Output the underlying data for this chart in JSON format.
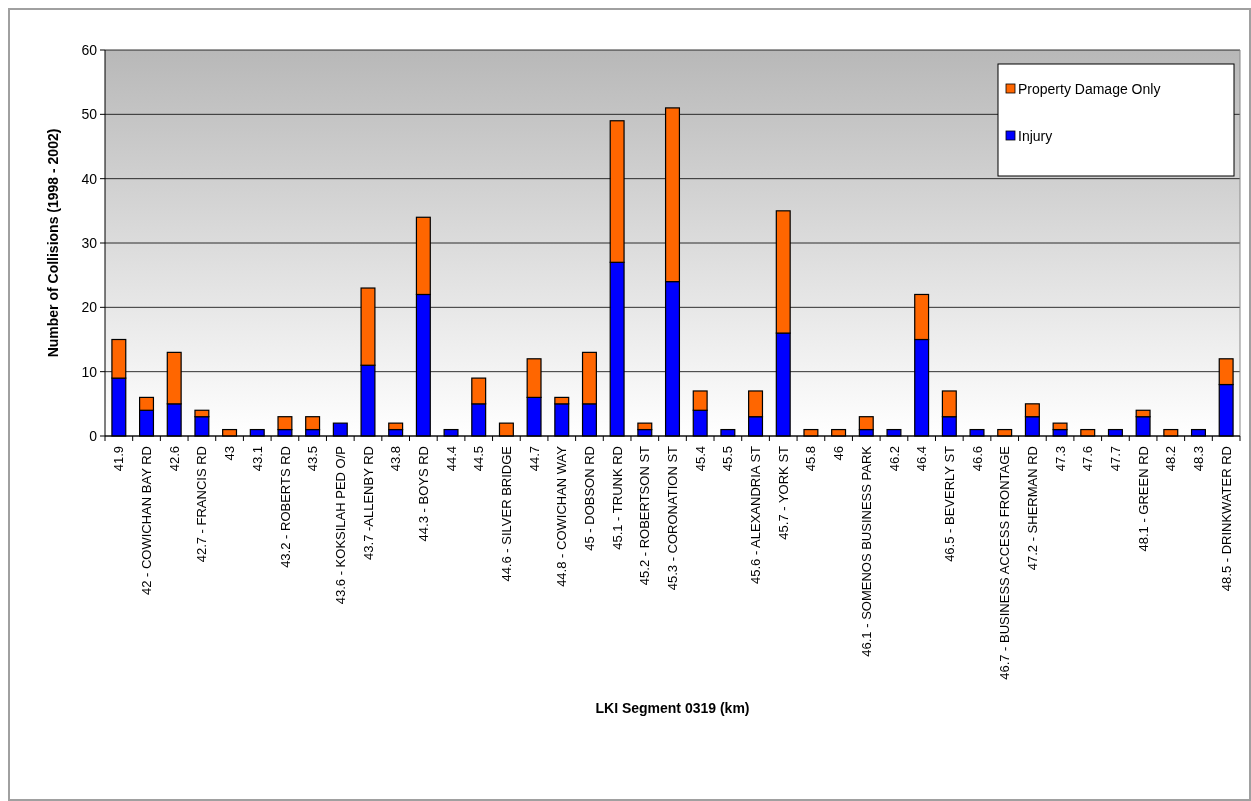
{
  "chart_data": {
    "type": "bar",
    "stacked": true,
    "xlabel": "LKI Segment 0319 (km)",
    "ylabel": "Number of Collisions (1998 - 2002)",
    "categories": [
      "41.9",
      "42 - COWICHAN BAY RD",
      "42.6",
      "42.7 - FRANCIS RD",
      "43",
      "43.1",
      "43.2 - ROBERTS RD",
      "43.5",
      "43.6 - KOKSILAH PED O/P",
      "43.7 -ALLENBY RD",
      "43.8",
      "44.3 - BOYS RD",
      "44.4",
      "44.5",
      "44.6 - SILVER BRIDGE",
      "44.7",
      "44.8 - COWICHAN WAY",
      "45 - DOBSON RD",
      "45.1 - TRUNK RD",
      "45.2 - ROBERTSON ST",
      "45.3 - CORONATION ST",
      "45.4",
      "45.5",
      "45.6 - ALEXANDRIA ST",
      "45.7 - YORK ST",
      "45.8",
      "46",
      "46.1 - SOMENOS BUSINESS PARK",
      "46.2",
      "46.4",
      "46.5 - BEVERLY ST",
      "46.6",
      "46.7 - BUSINESS ACCESS FRONTAGE",
      "47.2 - SHERMAN RD",
      "47.3",
      "47.6",
      "47.7",
      "48.1 - GREEN RD",
      "48.2",
      "48.3",
      "48.5 - DRINKWATER RD"
    ],
    "series": [
      {
        "name": "Injury",
        "color": "#0000ff",
        "values": [
          9,
          4,
          5,
          3,
          0,
          1,
          1,
          1,
          2,
          11,
          1,
          22,
          1,
          5,
          0,
          6,
          5,
          5,
          27,
          1,
          24,
          4,
          1,
          3,
          16,
          0,
          0,
          1,
          1,
          15,
          3,
          1,
          0,
          3,
          1,
          0,
          1,
          3,
          0,
          1,
          8
        ]
      },
      {
        "name": "Property Damage Only",
        "color": "#ff6600",
        "values": [
          6,
          2,
          8,
          1,
          1,
          0,
          2,
          2,
          0,
          12,
          1,
          12,
          0,
          4,
          2,
          6,
          1,
          8,
          22,
          1,
          27,
          3,
          0,
          4,
          19,
          1,
          1,
          2,
          0,
          7,
          4,
          0,
          1,
          2,
          1,
          1,
          0,
          1,
          1,
          0,
          4
        ]
      }
    ],
    "ylim": [
      0,
      60
    ],
    "yticks": [
      0,
      10,
      20,
      30,
      40,
      50,
      60
    ],
    "grid": "y",
    "legend": "top right"
  }
}
